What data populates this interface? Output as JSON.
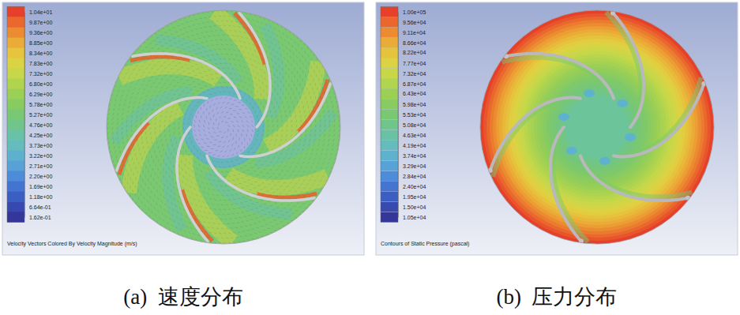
{
  "chart_data": [
    {
      "type": "vector",
      "caption": "(a)  速度分布",
      "footer": "Velocity Vectors Colored By Velocity Magnitude (m/s)",
      "colorbar": {
        "range": [
          0.162,
          10.4
        ],
        "ticks": [
          {
            "value": 10.4,
            "label": "1.04e+01"
          },
          {
            "value": 9.87,
            "label": "9.87e+00"
          },
          {
            "value": 9.36,
            "label": "9.36e+00"
          },
          {
            "value": 8.85,
            "label": "8.85e+00"
          },
          {
            "value": 8.34,
            "label": "8.34e+00"
          },
          {
            "value": 7.83,
            "label": "7.83e+00"
          },
          {
            "value": 7.32,
            "label": "7.32e+00"
          },
          {
            "value": 6.8,
            "label": "6.80e+00"
          },
          {
            "value": 6.29,
            "label": "6.29e+00"
          },
          {
            "value": 5.78,
            "label": "5.78e+00"
          },
          {
            "value": 5.27,
            "label": "5.27e+00"
          },
          {
            "value": 4.76,
            "label": "4.76e+00"
          },
          {
            "value": 4.25,
            "label": "4.25e+00"
          },
          {
            "value": 3.73,
            "label": "3.73e+00"
          },
          {
            "value": 3.22,
            "label": "3.22e+00"
          },
          {
            "value": 2.71,
            "label": "2.71e+00"
          },
          {
            "value": 2.2,
            "label": "2.20e+00"
          },
          {
            "value": 1.69,
            "label": "1.69e+00"
          },
          {
            "value": 1.18,
            "label": "1.18e+00"
          },
          {
            "value": 0.664,
            "label": "6.64e-01"
          },
          {
            "value": 0.162,
            "label": "1.62e-01"
          }
        ]
      }
    },
    {
      "type": "contour",
      "caption": "(b)  压力分布",
      "footer": "Contours of Static Pressure (pascal)",
      "colorbar": {
        "range": [
          10500,
          100000
        ],
        "ticks": [
          {
            "value": 100000,
            "label": "1.00e+05"
          },
          {
            "value": 95600,
            "label": "9.56e+04"
          },
          {
            "value": 91100,
            "label": "9.11e+04"
          },
          {
            "value": 86600,
            "label": "8.66e+04"
          },
          {
            "value": 82200,
            "label": "8.22e+04"
          },
          {
            "value": 77700,
            "label": "7.77e+04"
          },
          {
            "value": 73200,
            "label": "7.32e+04"
          },
          {
            "value": 68700,
            "label": "6.87e+04"
          },
          {
            "value": 64300,
            "label": "6.43e+04"
          },
          {
            "value": 59800,
            "label": "5.98e+04"
          },
          {
            "value": 55300,
            "label": "5.53e+04"
          },
          {
            "value": 50800,
            "label": "5.08e+04"
          },
          {
            "value": 46300,
            "label": "4.63e+04"
          },
          {
            "value": 41900,
            "label": "4.19e+04"
          },
          {
            "value": 37400,
            "label": "3.74e+04"
          },
          {
            "value": 32900,
            "label": "3.29e+04"
          },
          {
            "value": 28400,
            "label": "2.84e+04"
          },
          {
            "value": 24000,
            "label": "2.40e+04"
          },
          {
            "value": 19500,
            "label": "1.95e+04"
          },
          {
            "value": 15000,
            "label": "1.50e+04"
          },
          {
            "value": 10500,
            "label": "1.05e+04"
          }
        ]
      }
    }
  ]
}
